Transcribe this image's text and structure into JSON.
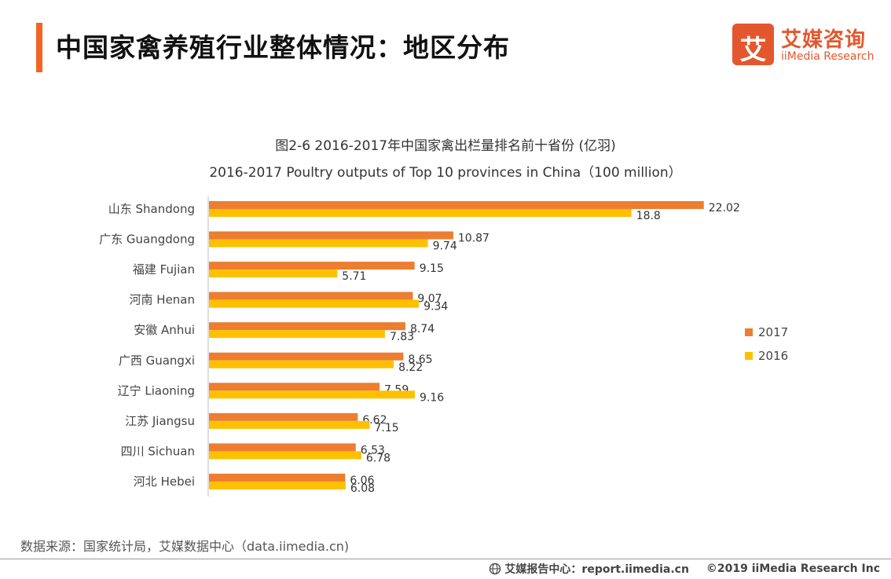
{
  "header": {
    "title": "中国家禽养殖行业整体情况：地区分布",
    "accent_color": "#f26522"
  },
  "logo": {
    "mark": "艾",
    "name_cn": "艾媒咨询",
    "name_en": "iiMedia Research",
    "color": "#e4572e"
  },
  "chart_data": {
    "type": "bar",
    "orientation": "horizontal",
    "title": "图2-6 2016-2017年中国家禽出栏量排名前十省份 (亿羽)",
    "subtitle": "2016-2017 Poultry outputs of Top 10 provinces in China（100 million）",
    "categories": [
      "山东 Shandong",
      "广东 Guangdong",
      "福建 Fujian",
      "河南 Henan",
      "安徽 Anhui",
      "广西 Guangxi",
      "辽宁 Liaoning",
      "江苏 Jiangsu",
      "四川 Sichuan",
      "河北 Hebei"
    ],
    "series": [
      {
        "name": "2017",
        "color": "#ed7d31",
        "values": [
          22.02,
          10.87,
          9.15,
          9.07,
          8.74,
          8.65,
          7.59,
          6.62,
          6.53,
          6.06
        ]
      },
      {
        "name": "2016",
        "color": "#ffc000",
        "values": [
          18.8,
          9.74,
          5.71,
          9.34,
          7.83,
          8.22,
          9.16,
          7.15,
          6.78,
          6.08
        ]
      }
    ],
    "xlim": [
      0,
      25
    ],
    "grid": false,
    "legend_position": "right"
  },
  "source": "数据来源：国家统计局，艾媒数据中心（data.iimedia.cn)",
  "footer": {
    "site": "艾媒报告中心：report.iimedia.cn",
    "copyright": "©2019  iiMedia Research  Inc"
  }
}
